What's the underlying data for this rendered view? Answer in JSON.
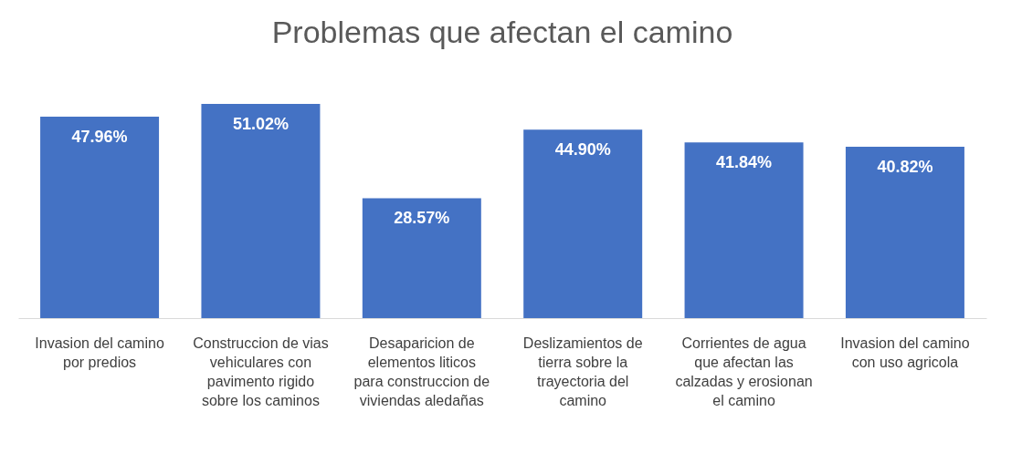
{
  "chart_data": {
    "type": "bar",
    "title": "Problemas que afectan el camino",
    "categories": [
      "Invasion del camino por predios",
      "Construccion de vias vehiculares con pavimento rigido sobre los caminos",
      "Desaparicion de elementos liticos para construccion de viviendas aledañas",
      "Deslizamientos de tierra sobre la trayectoria del camino",
      "Corrientes de agua que afectan las calzadas y erosionan el camino",
      "Invasion del camino con uso agricola"
    ],
    "values": [
      47.96,
      51.02,
      28.57,
      44.9,
      41.84,
      40.82
    ],
    "value_labels": [
      "47.96%",
      "51.02%",
      "28.57%",
      "44.90%",
      "41.84%",
      "40.82%"
    ],
    "color": "#4472c4",
    "grid": false
  }
}
